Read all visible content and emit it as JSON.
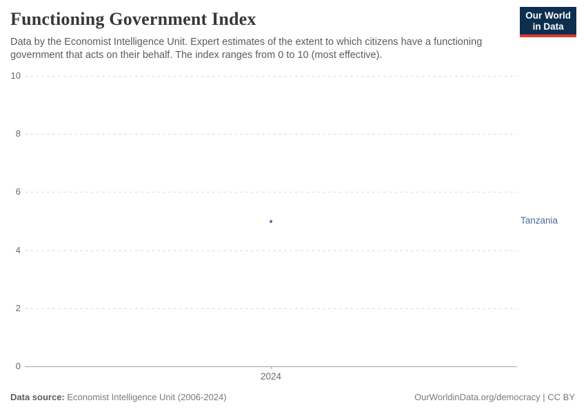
{
  "header": {
    "title": "Functioning Government Index",
    "subtitle": "Data by the Economist Intelligence Unit. Expert estimates of the extent to which citizens have a functioning government that acts on their behalf. The index ranges from 0 to 10 (most effective)."
  },
  "logo": {
    "line1": "Our World",
    "line2": "in Data"
  },
  "footer": {
    "source_label": "Data source:",
    "source_text": " Economist Intelligence Unit (2006-2024)",
    "rights": "OurWorldinData.org/democracy | CC BY"
  },
  "colors": {
    "accent": "#4c6a9c",
    "logo_bg": "#0d2e4f",
    "logo_stripe": "#dc3a2f",
    "gridline": "#dddddd",
    "axis": "#a3a3a3",
    "tick_text": "#686868"
  },
  "chart_data": {
    "type": "scatter",
    "title": "Functioning Government Index",
    "subtitle": "Data by the Economist Intelligence Unit. Expert estimates of the extent to which citizens have a functioning government that acts on their behalf. The index ranges from 0 to 10 (most effective).",
    "series": [
      {
        "name": "Tanzania",
        "x": [
          2024
        ],
        "values": [
          5
        ],
        "color": "#4c6a9c"
      }
    ],
    "xticks": [
      2024
    ],
    "yticks": [
      0,
      2,
      4,
      6,
      8,
      10
    ],
    "ylim": [
      0,
      10
    ],
    "xlabel": "",
    "ylabel": "",
    "grid": "horizontal-dashed",
    "legend_position": "entity-label-right"
  }
}
